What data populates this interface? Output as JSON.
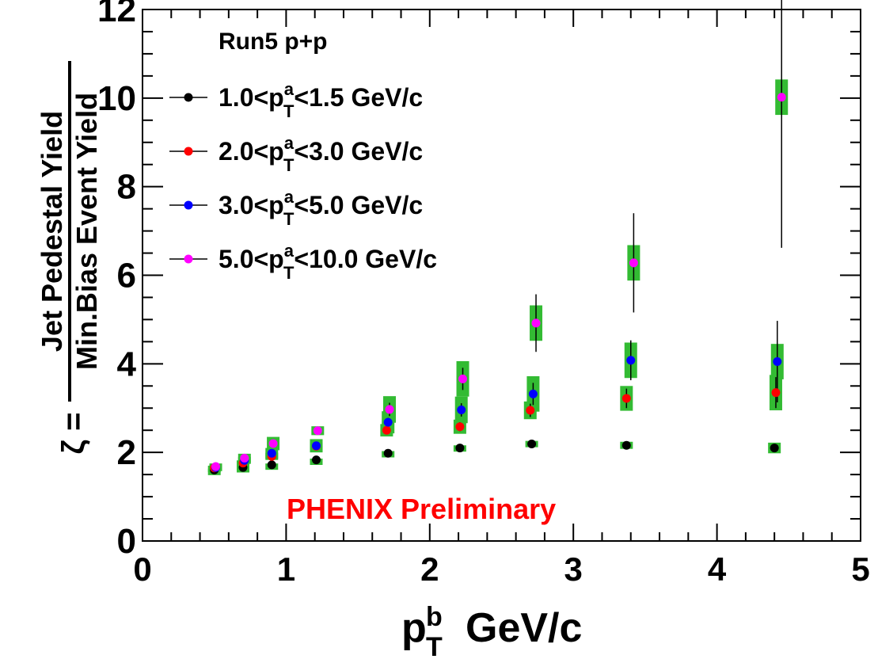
{
  "chart_data": {
    "type": "scatter",
    "title": "",
    "header_text": "Run5 p+p",
    "annotation": "PHENIX Preliminary",
    "annotation_color": "#ff0000",
    "xlabel": {
      "main": "p",
      "sup": "b",
      "sub": "T",
      "unit": "GeV/c"
    },
    "ylabel": {
      "prefix": "ζ =",
      "numerator": "Jet Pedestal Yield",
      "denominator": "Min.Bias Event Yield"
    },
    "xlim": [
      0,
      5
    ],
    "ylim": [
      0,
      12
    ],
    "x_ticks": [
      "0",
      "1",
      "2",
      "3",
      "4",
      "5"
    ],
    "y_ticks": [
      "0",
      "2",
      "4",
      "6",
      "8",
      "10",
      "12"
    ],
    "grid": false,
    "legend_position": "top-left",
    "sys_error_color": "#33bb33",
    "series": [
      {
        "name": "1.0<p_T^a<1.5 GeV/c",
        "label_pre": "1.0<p",
        "label_sup": "a",
        "label_sub": "T",
        "label_post": "<1.5 GeV/c",
        "color": "#000000",
        "points": [
          {
            "x": 0.5,
            "y": 1.6,
            "err": 0.02,
            "sys": 0.03
          },
          {
            "x": 0.7,
            "y": 1.66,
            "err": 0.02,
            "sys": 0.03
          },
          {
            "x": 0.9,
            "y": 1.72,
            "err": 0.02,
            "sys": 0.03
          },
          {
            "x": 1.21,
            "y": 1.83,
            "err": 0.02,
            "sys": 0.03
          },
          {
            "x": 1.71,
            "y": 1.98,
            "err": 0.03,
            "sys": 0.05
          },
          {
            "x": 2.21,
            "y": 2.1,
            "err": 0.04,
            "sys": 0.06
          },
          {
            "x": 2.71,
            "y": 2.19,
            "err": 0.05,
            "sys": 0.07
          },
          {
            "x": 3.37,
            "y": 2.16,
            "err": 0.06,
            "sys": 0.08
          },
          {
            "x": 4.4,
            "y": 2.1,
            "err": 0.08,
            "sys": 0.12
          }
        ]
      },
      {
        "name": "2.0<p_T^a<3.0 GeV/c",
        "label_pre": "2.0<p",
        "label_sup": "a",
        "label_sub": "T",
        "label_post": "<3.0 GeV/c",
        "color": "#ff0000",
        "points": [
          {
            "x": 0.5,
            "y": 1.65,
            "err": 0.02,
            "sys": 0.05
          },
          {
            "x": 0.7,
            "y": 1.76,
            "err": 0.02,
            "sys": 0.06
          },
          {
            "x": 0.9,
            "y": 1.91,
            "err": 0.03,
            "sys": 0.08
          },
          {
            "x": 1.21,
            "y": 2.14,
            "err": 0.04,
            "sys": 0.1
          },
          {
            "x": 1.7,
            "y": 2.5,
            "err": 0.07,
            "sys": 0.14
          },
          {
            "x": 2.21,
            "y": 2.58,
            "err": 0.1,
            "sys": 0.16
          },
          {
            "x": 2.7,
            "y": 2.95,
            "err": 0.15,
            "sys": 0.2
          },
          {
            "x": 3.37,
            "y": 3.22,
            "err": 0.22,
            "sys": 0.28
          },
          {
            "x": 4.41,
            "y": 3.35,
            "err": 0.35,
            "sys": 0.4
          }
        ]
      },
      {
        "name": "3.0<p_T^a<5.0 GeV/c",
        "label_pre": "3.0<p",
        "label_sup": "a",
        "label_sub": "T",
        "label_post": "<5.0 GeV/c",
        "color": "#0000ff",
        "points": [
          {
            "x": 0.51,
            "y": 1.66,
            "err": 0.02,
            "sys": 0.06
          },
          {
            "x": 0.71,
            "y": 1.82,
            "err": 0.03,
            "sys": 0.08
          },
          {
            "x": 0.9,
            "y": 1.98,
            "err": 0.04,
            "sys": 0.12
          },
          {
            "x": 1.21,
            "y": 2.15,
            "err": 0.05,
            "sys": 0.15
          },
          {
            "x": 1.71,
            "y": 2.68,
            "err": 0.1,
            "sys": 0.25
          },
          {
            "x": 2.22,
            "y": 2.96,
            "err": 0.15,
            "sys": 0.3
          },
          {
            "x": 2.72,
            "y": 3.32,
            "err": 0.25,
            "sys": 0.4
          },
          {
            "x": 3.4,
            "y": 4.08,
            "err": 0.45,
            "sys": 0.4
          },
          {
            "x": 4.42,
            "y": 4.05,
            "err": 0.92,
            "sys": 0.4
          }
        ]
      },
      {
        "name": "5.0<p_T^a<10.0 GeV/c",
        "label_pre": "5.0<p",
        "label_sup": "a",
        "label_sub": "T",
        "label_post": "<10.0 GeV/c",
        "color": "#ff00ff",
        "points": [
          {
            "x": 0.51,
            "y": 1.68,
            "err": 0.02,
            "sys": 0.07
          },
          {
            "x": 0.71,
            "y": 1.87,
            "err": 0.03,
            "sys": 0.1
          },
          {
            "x": 0.91,
            "y": 2.2,
            "err": 0.05,
            "sys": 0.15
          },
          {
            "x": 1.22,
            "y": 2.49,
            "err": 0.08,
            "sys": 0.1
          },
          {
            "x": 1.72,
            "y": 2.97,
            "err": 0.15,
            "sys": 0.3
          },
          {
            "x": 2.23,
            "y": 3.66,
            "err": 0.25,
            "sys": 0.4
          },
          {
            "x": 2.74,
            "y": 4.92,
            "err": 0.65,
            "sys": 0.4
          },
          {
            "x": 3.42,
            "y": 6.28,
            "err": 1.12,
            "sys": 0.4
          },
          {
            "x": 4.45,
            "y": 10.02,
            "err": 3.4,
            "sys": 0.4
          }
        ]
      }
    ]
  }
}
